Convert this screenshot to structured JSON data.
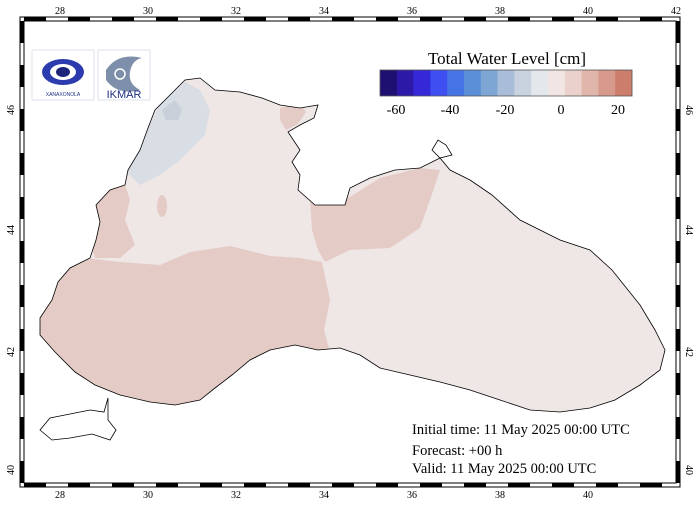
{
  "map": {
    "region": "Black Sea",
    "lon_labels": [
      "28",
      "30",
      "32",
      "34",
      "36",
      "38",
      "40",
      "42"
    ],
    "lat_labels": [
      "40",
      "42",
      "44",
      "46"
    ]
  },
  "colorbar": {
    "title": "Total Water Level [cm]",
    "ticks": [
      "-60",
      "-40",
      "-20",
      "0",
      "20"
    ],
    "colors": [
      "#1e1070",
      "#2c19a8",
      "#3528d8",
      "#3f4ef0",
      "#4474e6",
      "#5a8ed6",
      "#7ea6d4",
      "#a9bdd8",
      "#c8d3df",
      "#e4e8ec",
      "#f1e6e3",
      "#ead1cb",
      "#e0b6ab",
      "#d6998c",
      "#cc7d6c"
    ]
  },
  "info": {
    "initial_time": "Initial time: 11 May 2025 00:00 UTC",
    "forecast": "Forecast: +00 h",
    "valid": "Valid: 11 May 2025 00:00 UTC"
  },
  "logos": {
    "left": "logo-left-icon",
    "right": "logo-right-icon",
    "right_text": "IKMAR",
    "left_caption": "XANAXONOLA"
  },
  "field_colors": {
    "sea_neutral": "#efe6e6",
    "sea_positive": "#e4cbc6",
    "sea_negative": "#d9dde4"
  }
}
